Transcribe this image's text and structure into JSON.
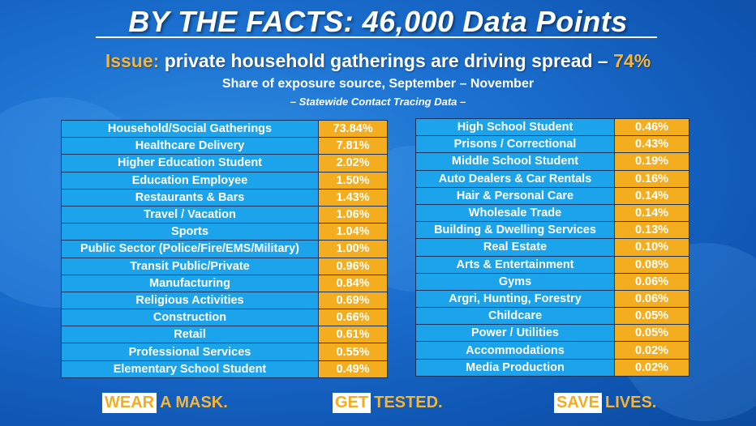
{
  "title": "BY THE FACTS: 46,000 Data Points",
  "issue": {
    "prefix": "Issue:",
    "text": " private household gatherings are driving spread – ",
    "percent": "74%"
  },
  "subtitle": "Share of exposure source, September – November",
  "subtitle2": "– Statewide Contact Tracing Data –",
  "left_table": [
    {
      "label": "Household/Social Gatherings",
      "value": "73.84%"
    },
    {
      "label": "Healthcare Delivery",
      "value": "7.81%"
    },
    {
      "label": "Higher Education Student",
      "value": "2.02%"
    },
    {
      "label": "Education Employee",
      "value": "1.50%"
    },
    {
      "label": "Restaurants & Bars",
      "value": "1.43%"
    },
    {
      "label": "Travel / Vacation",
      "value": "1.06%"
    },
    {
      "label": "Sports",
      "value": "1.04%"
    },
    {
      "label": "Public Sector (Police/Fire/EMS/Military)",
      "value": "1.00%"
    },
    {
      "label": "Transit Public/Private",
      "value": "0.96%"
    },
    {
      "label": "Manufacturing",
      "value": "0.84%"
    },
    {
      "label": "Religious Activities",
      "value": "0.69%"
    },
    {
      "label": "Construction",
      "value": "0.66%"
    },
    {
      "label": "Retail",
      "value": "0.61%"
    },
    {
      "label": "Professional Services",
      "value": "0.55%"
    },
    {
      "label": "Elementary School Student",
      "value": "0.49%"
    }
  ],
  "right_table": [
    {
      "label": "High School Student",
      "value": "0.46%"
    },
    {
      "label": "Prisons / Correctional",
      "value": "0.43%"
    },
    {
      "label": "Middle School Student",
      "value": "0.19%"
    },
    {
      "label": "Auto Dealers & Car Rentals",
      "value": "0.16%"
    },
    {
      "label": "Hair & Personal Care",
      "value": "0.14%"
    },
    {
      "label": "Wholesale Trade",
      "value": "0.14%"
    },
    {
      "label": "Building & Dwelling Services",
      "value": "0.13%"
    },
    {
      "label": "Real Estate",
      "value": "0.10%"
    },
    {
      "label": "Arts & Entertainment",
      "value": "0.08%"
    },
    {
      "label": "Gyms",
      "value": "0.06%"
    },
    {
      "label": "Argri, Hunting, Forestry",
      "value": "0.06%"
    },
    {
      "label": "Childcare",
      "value": "0.05%"
    },
    {
      "label": "Power / Utilities",
      "value": "0.05%"
    },
    {
      "label": "Accommodations",
      "value": "0.02%"
    },
    {
      "label": "Media Production",
      "value": "0.02%"
    }
  ],
  "cta": {
    "mask": {
      "boxed": "WEAR",
      "rest": "A MASK."
    },
    "tested": {
      "boxed": "GET",
      "rest": "TESTED."
    },
    "lives": {
      "boxed": "SAVE",
      "rest": "LIVES."
    }
  },
  "colors": {
    "label_cell": "#1ba3ec",
    "value_cell": "#f3ad1f",
    "accent": "#f6b436",
    "background": "#1b6fcf"
  }
}
